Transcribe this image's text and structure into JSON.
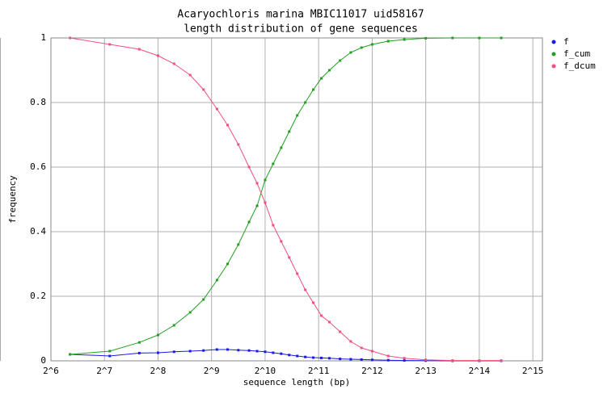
{
  "chart_data": {
    "type": "line",
    "title": "Acaryochloris marina MBIC11017 uid58167",
    "subtitle": "length distribution of gene sequences",
    "x_label": "sequence length (bp)",
    "y_label": "frequency",
    "x_scale": "log2",
    "grid": true,
    "legend_position": "right",
    "x": [
      82,
      137,
      201,
      256,
      315,
      388,
      461,
      549,
      630,
      724,
      832,
      923,
      1024,
      1136,
      1261,
      1399,
      1552,
      1722,
      1911,
      2120,
      2353,
      2702,
      3104,
      3566,
      4096,
      5043,
      6208,
      8192,
      11585,
      16384,
      21770
    ],
    "series": [
      {
        "name": "f",
        "color": "#1a1ae6",
        "values": [
          0.02,
          0.015,
          0.024,
          0.025,
          0.028,
          0.03,
          0.032,
          0.035,
          0.035,
          0.033,
          0.032,
          0.03,
          0.028,
          0.025,
          0.022,
          0.018,
          0.015,
          0.012,
          0.01,
          0.009,
          0.008,
          0.006,
          0.005,
          0.004,
          0.003,
          0.002,
          0.001,
          0.0005,
          0,
          0,
          0
        ]
      },
      {
        "name": "f_cum",
        "color": "#22a022",
        "values": [
          0.02,
          0.03,
          0.057,
          0.08,
          0.11,
          0.15,
          0.19,
          0.25,
          0.3,
          0.36,
          0.43,
          0.48,
          0.56,
          0.61,
          0.66,
          0.71,
          0.76,
          0.8,
          0.84,
          0.875,
          0.9,
          0.93,
          0.955,
          0.97,
          0.98,
          0.99,
          0.995,
          0.999,
          1,
          1,
          1
        ]
      },
      {
        "name": "f_dcum",
        "color": "#f0507f",
        "values": [
          1,
          0.98,
          0.965,
          0.945,
          0.92,
          0.885,
          0.84,
          0.78,
          0.73,
          0.67,
          0.6,
          0.55,
          0.49,
          0.42,
          0.37,
          0.32,
          0.27,
          0.22,
          0.18,
          0.14,
          0.12,
          0.09,
          0.06,
          0.04,
          0.03,
          0.015,
          0.008,
          0.003,
          0.001,
          0.001,
          0.001
        ]
      }
    ],
    "xlim": [
      64,
      37100
    ],
    "xticks": [
      {
        "value": 64,
        "label": "2^6"
      },
      {
        "value": 128,
        "label": "2^7"
      },
      {
        "value": 256,
        "label": "2^8"
      },
      {
        "value": 512,
        "label": "2^9"
      },
      {
        "value": 1024,
        "label": "2^10"
      },
      {
        "value": 2048,
        "label": "2^11"
      },
      {
        "value": 4096,
        "label": "2^12"
      },
      {
        "value": 8192,
        "label": "2^13"
      },
      {
        "value": 16384,
        "label": "2^14"
      },
      {
        "value": 32768,
        "label": "2^15"
      }
    ],
    "ylim": [
      0,
      1
    ],
    "yticks": [
      0,
      0.2,
      0.4,
      0.6,
      0.8,
      1
    ]
  }
}
